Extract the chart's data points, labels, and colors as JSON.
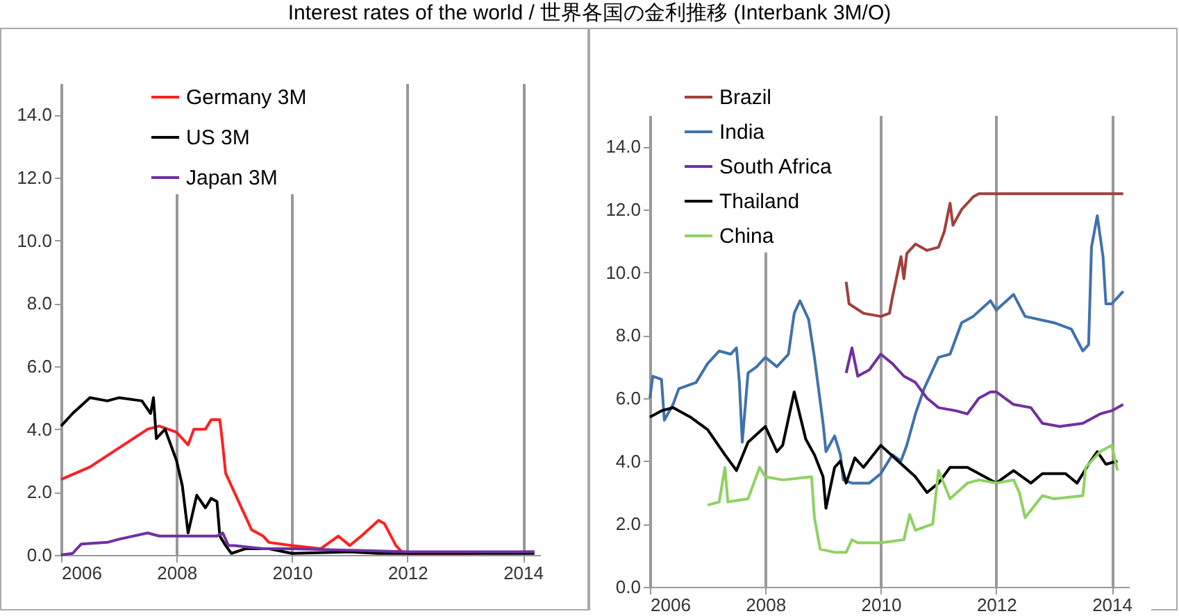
{
  "chart_data": [
    {
      "type": "line",
      "title": "Interest rates of the world / 世界各国の金利推移 (Interbank 3M/O)",
      "xlim": [
        2006,
        2014.3
      ],
      "xticks": [
        2006,
        2008,
        2010,
        2012,
        2014
      ],
      "ylim": [
        0,
        15
      ],
      "yticks": [
        {
          "value": 0,
          "label": "0.0"
        },
        {
          "value": 2,
          "label": "2.0"
        },
        {
          "value": 4,
          "label": "4.0"
        },
        {
          "value": 6,
          "label": "6.0"
        },
        {
          "value": 8,
          "label": "8.0"
        },
        {
          "value": 10,
          "label": "10.0"
        },
        {
          "value": 12,
          "label": "12.0"
        },
        {
          "value": 14,
          "label": "14.0"
        }
      ],
      "grid": "x",
      "legend": "top",
      "marker": "none",
      "line_style": "solid",
      "series": [
        {
          "name": "Germany 3M",
          "color": "#ff2020",
          "x": [
            2006,
            2006.5,
            2007,
            2007.5,
            2007.7,
            2008,
            2008.2,
            2008.3,
            2008.5,
            2008.6,
            2008.75,
            2008.8,
            2008.85,
            2009,
            2009.2,
            2009.3,
            2009.5,
            2009.6,
            2010,
            2010.5,
            2010.8,
            2011,
            2011.2,
            2011.5,
            2011.6,
            2011.8,
            2011.9,
            2012,
            2013,
            2014.2
          ],
          "values": [
            2.4,
            2.8,
            3.4,
            4.0,
            4.1,
            3.9,
            3.5,
            4.0,
            4.0,
            4.3,
            4.3,
            3.5,
            2.6,
            2.0,
            1.2,
            0.8,
            0.6,
            0.4,
            0.3,
            0.2,
            0.6,
            0.3,
            0.6,
            1.1,
            1.0,
            0.3,
            0.1,
            0.05,
            0.05,
            0.1
          ]
        },
        {
          "name": "US 3M",
          "color": "#000000",
          "x": [
            2006,
            2006.2,
            2006.5,
            2006.8,
            2007,
            2007.4,
            2007.55,
            2007.6,
            2007.65,
            2007.8,
            2008,
            2008.1,
            2008.2,
            2008.35,
            2008.5,
            2008.6,
            2008.7,
            2008.75,
            2008.85,
            2008.95,
            2009.2,
            2009.6,
            2010,
            2011,
            2011.5,
            2012,
            2014.2
          ],
          "values": [
            4.1,
            4.5,
            5.0,
            4.9,
            5.0,
            4.9,
            4.5,
            5.0,
            3.7,
            4.0,
            3.0,
            2.2,
            0.7,
            1.9,
            1.5,
            1.8,
            1.7,
            0.6,
            0.3,
            0.05,
            0.2,
            0.2,
            0.05,
            0.1,
            0.05,
            0.05,
            0.05
          ]
        },
        {
          "name": "Japan 3M",
          "color": "#7030a0",
          "x": [
            2006,
            2006.2,
            2006.35,
            2006.8,
            2007,
            2007.5,
            2007.7,
            2008,
            2008.7,
            2008.8,
            2008.9,
            2009,
            2009.5,
            2010,
            2011,
            2012,
            2014.2
          ],
          "values": [
            0,
            0.05,
            0.35,
            0.4,
            0.5,
            0.7,
            0.6,
            0.6,
            0.6,
            0.7,
            0.3,
            0.3,
            0.2,
            0.2,
            0.15,
            0.1,
            0.1
          ]
        }
      ]
    },
    {
      "type": "line",
      "xlim": [
        2006,
        2014.3
      ],
      "xticks": [
        2006,
        2008,
        2010,
        2012,
        2014
      ],
      "ylim": [
        0,
        15
      ],
      "yticks": [
        {
          "value": 0,
          "label": "0.0"
        },
        {
          "value": 2,
          "label": "2.0"
        },
        {
          "value": 4,
          "label": "4.0"
        },
        {
          "value": 6,
          "label": "6.0"
        },
        {
          "value": 8,
          "label": "8.0"
        },
        {
          "value": 10,
          "label": "10.0"
        },
        {
          "value": 12,
          "label": "12.0"
        },
        {
          "value": 14,
          "label": "14.0"
        }
      ],
      "grid": "x",
      "legend": "top left",
      "marker": "none",
      "line_style": "solid",
      "series": [
        {
          "name": "Brazil",
          "color": "#a0403c",
          "x": [
            2009.4,
            2009.45,
            2009.7,
            2010,
            2010.15,
            2010.2,
            2010.35,
            2010.4,
            2010.45,
            2010.6,
            2010.8,
            2011.0,
            2011.1,
            2011.2,
            2011.25,
            2011.4,
            2011.6,
            2011.7,
            2014.2
          ],
          "values": [
            9.7,
            9.0,
            8.7,
            8.6,
            8.7,
            9.2,
            10.5,
            9.8,
            10.6,
            10.9,
            10.7,
            10.8,
            11.3,
            12.2,
            11.5,
            12.0,
            12.4,
            12.5,
            12.5
          ]
        },
        {
          "name": "India",
          "color": "#3f72ac",
          "x": [
            2006,
            2006.05,
            2006.2,
            2006.25,
            2006.4,
            2006.5,
            2006.8,
            2007,
            2007.2,
            2007.4,
            2007.5,
            2007.55,
            2007.6,
            2007.7,
            2007.85,
            2008,
            2008.2,
            2008.4,
            2008.5,
            2008.6,
            2008.75,
            2008.85,
            2009,
            2009.05,
            2009.2,
            2009.3,
            2009.35,
            2009.5,
            2009.8,
            2010,
            2010.2,
            2010.35,
            2010.45,
            2010.6,
            2010.75,
            2011,
            2011.2,
            2011.4,
            2011.6,
            2011.9,
            2012,
            2012.3,
            2012.5,
            2013,
            2013.3,
            2013.5,
            2013.6,
            2013.65,
            2013.75,
            2013.85,
            2013.9,
            2014,
            2014.2
          ],
          "values": [
            6.0,
            6.7,
            6.6,
            5.3,
            5.8,
            6.3,
            6.5,
            7.1,
            7.5,
            7.4,
            7.6,
            6.5,
            4.6,
            6.8,
            7.0,
            7.3,
            7.0,
            7.4,
            8.7,
            9.1,
            8.5,
            7.3,
            5.2,
            4.3,
            4.8,
            4.2,
            3.4,
            3.3,
            3.3,
            3.6,
            4.2,
            4.0,
            4.5,
            5.5,
            6.3,
            7.3,
            7.4,
            8.4,
            8.6,
            9.1,
            8.8,
            9.3,
            8.6,
            8.4,
            8.2,
            7.5,
            7.7,
            10.8,
            11.8,
            10.5,
            9.0,
            9.0,
            9.4
          ]
        },
        {
          "name": "South Africa",
          "color": "#7030a0",
          "x": [
            2009.4,
            2009.5,
            2009.6,
            2009.8,
            2010,
            2010.2,
            2010.4,
            2010.6,
            2010.8,
            2011,
            2011.3,
            2011.5,
            2011.7,
            2011.9,
            2012,
            2012.3,
            2012.6,
            2012.8,
            2013.1,
            2013.5,
            2013.8,
            2014,
            2014.2
          ],
          "values": [
            6.8,
            7.6,
            6.7,
            6.9,
            7.4,
            7.1,
            6.7,
            6.5,
            6.0,
            5.7,
            5.6,
            5.5,
            6.0,
            6.2,
            6.2,
            5.8,
            5.7,
            5.2,
            5.1,
            5.2,
            5.5,
            5.6,
            5.8
          ]
        },
        {
          "name": "Thailand",
          "color": "#000000",
          "x": [
            2006,
            2006.2,
            2006.4,
            2006.7,
            2007,
            2007.3,
            2007.5,
            2007.7,
            2008,
            2008.2,
            2008.3,
            2008.5,
            2008.7,
            2008.85,
            2009.0,
            2009.05,
            2009.2,
            2009.3,
            2009.4,
            2009.55,
            2009.7,
            2010,
            2010.3,
            2010.6,
            2010.8,
            2011.0,
            2011.2,
            2011.5,
            2011.8,
            2012,
            2012.3,
            2012.6,
            2012.8,
            2013.2,
            2013.4,
            2013.6,
            2013.75,
            2013.9,
            2014.1
          ],
          "values": [
            5.4,
            5.6,
            5.7,
            5.4,
            5.0,
            4.2,
            3.7,
            4.6,
            5.1,
            4.3,
            4.5,
            6.2,
            4.7,
            4.2,
            3.5,
            2.5,
            3.8,
            4.0,
            3.3,
            4.1,
            3.8,
            4.5,
            4.0,
            3.5,
            3.0,
            3.3,
            3.8,
            3.8,
            3.5,
            3.3,
            3.7,
            3.3,
            3.6,
            3.6,
            3.3,
            3.9,
            4.3,
            3.9,
            4.0
          ]
        },
        {
          "name": "China",
          "color": "#8fd162",
          "x": [
            2007.0,
            2007.2,
            2007.3,
            2007.35,
            2007.7,
            2007.9,
            2008,
            2008.3,
            2008.8,
            2008.85,
            2008.95,
            2009.2,
            2009.4,
            2009.5,
            2009.6,
            2010,
            2010.4,
            2010.5,
            2010.6,
            2010.9,
            2011.0,
            2011.2,
            2011.5,
            2011.7,
            2012,
            2012.3,
            2012.4,
            2012.5,
            2012.8,
            2013,
            2013.5,
            2013.55,
            2013.8,
            2014.0,
            2014.1
          ],
          "values": [
            2.6,
            2.7,
            3.8,
            2.7,
            2.8,
            3.8,
            3.5,
            3.4,
            3.5,
            2.2,
            1.2,
            1.1,
            1.1,
            1.5,
            1.4,
            1.4,
            1.5,
            2.3,
            1.8,
            2.0,
            3.7,
            2.8,
            3.3,
            3.4,
            3.3,
            3.4,
            3.0,
            2.2,
            2.9,
            2.8,
            2.9,
            3.8,
            4.3,
            4.5,
            3.7
          ]
        }
      ]
    }
  ]
}
